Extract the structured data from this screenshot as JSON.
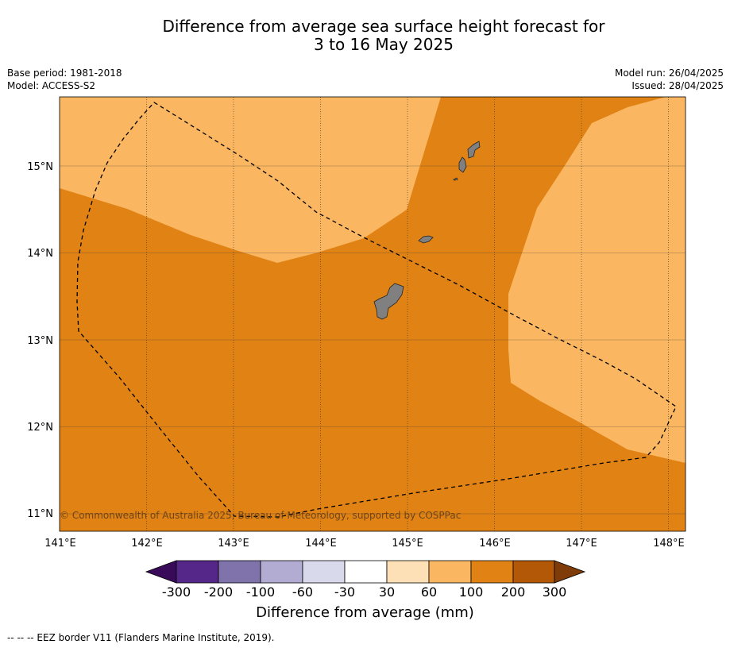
{
  "title": {
    "line1": "Difference from average sea surface height forecast for",
    "line2": "3 to 16 May 2025"
  },
  "meta": {
    "base_period": "Base period: 1981-2018",
    "model": "Model: ACCESS-S2",
    "model_run": "Model run: 26/04/2025",
    "issued": "Issued: 28/04/2025"
  },
  "map": {
    "lon_labels": [
      "141°E",
      "142°E",
      "143°E",
      "144°E",
      "145°E",
      "146°E",
      "147°E",
      "148°E"
    ],
    "lat_labels": [
      "15°N",
      "14°N",
      "13°N",
      "12°N",
      "11°N"
    ],
    "copyright": "© Commonwealth of Australia 2025, Bureau of Meteorology, supported by COSPPac",
    "region_colors": {
      "100_to_200": "#e08214",
      "60_to_100": "#fab660",
      "land": "#808080"
    }
  },
  "colorbar": {
    "ticks": [
      "-300",
      "-200",
      "-100",
      "-60",
      "-30",
      "30",
      "60",
      "100",
      "200",
      "300"
    ],
    "colors": [
      "#3a0a5a",
      "#542788",
      "#8073ac",
      "#b2abd2",
      "#d8daeb",
      "#ffffff",
      "#fee0b6",
      "#fab660",
      "#e08214",
      "#b35806",
      "#7f3b08"
    ],
    "label": "Difference from average (mm)"
  },
  "footnote": "--  --  -- EEZ border V11 (Flanders Marine Institute, 2019)."
}
